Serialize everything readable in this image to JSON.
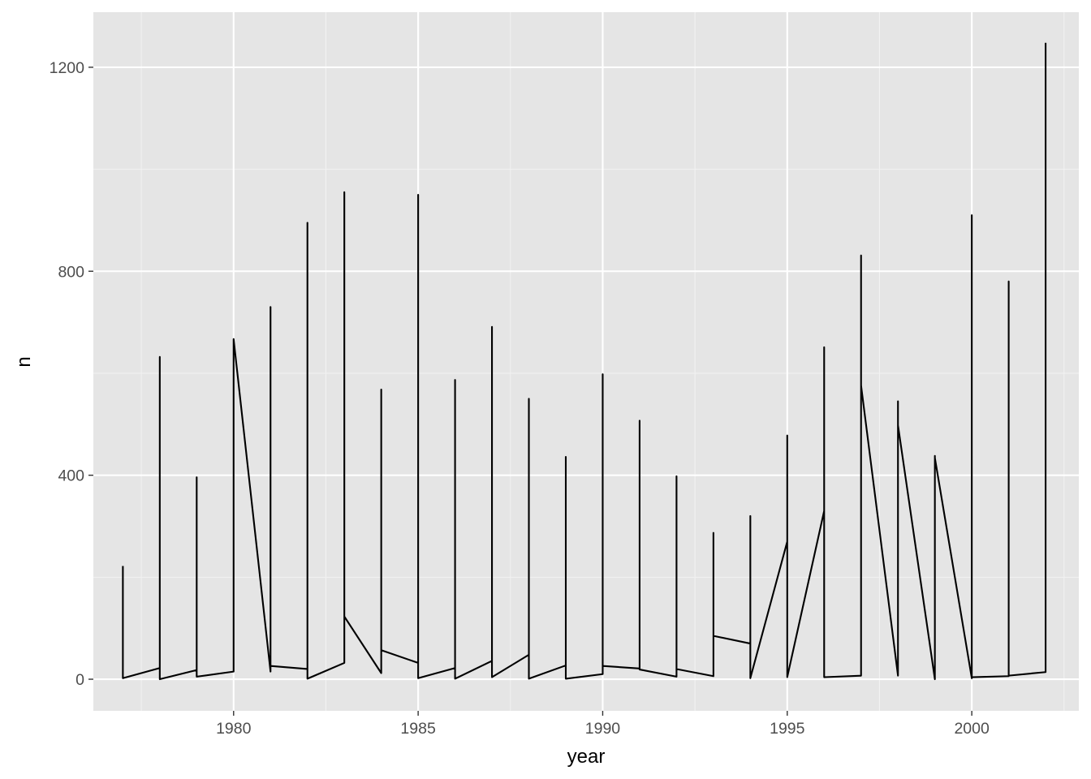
{
  "chart_data": {
    "type": "line",
    "title": "",
    "xlabel": "year",
    "ylabel": "n",
    "xlim": [
      1976.2,
      2002.9
    ],
    "ylim": [
      -62,
      1308
    ],
    "x_ticks": [
      1980,
      1985,
      1990,
      1995,
      2000
    ],
    "y_ticks": [
      0,
      400,
      800,
      1200
    ],
    "grid": true,
    "legend": "none",
    "line_color": "#000000",
    "panel_color": "#e5e5e5",
    "series": [
      {
        "x": [
          1977,
          1977,
          1978,
          1978,
          1978,
          1979,
          1979,
          1979,
          1980,
          1980,
          1981,
          1981,
          1981,
          1982,
          1982,
          1982,
          1983,
          1983,
          1983,
          1984,
          1984,
          1984,
          1985,
          1985,
          1985,
          1986,
          1986,
          1986,
          1987,
          1987,
          1987,
          1988,
          1988,
          1988,
          1989,
          1989,
          1989,
          1990,
          1990,
          1990,
          1991,
          1991,
          1991,
          1992,
          1992,
          1992,
          1993,
          1993,
          1993,
          1994,
          1994,
          1994,
          1995,
          1995,
          1995,
          1996,
          1996,
          1996,
          1997,
          1997,
          1997,
          1998,
          1998,
          1998,
          1999,
          1999,
          1999,
          2000,
          2000,
          2000,
          2001,
          2001,
          2001,
          2002,
          2002
        ],
        "y": [
          222,
          2,
          22,
          632,
          0,
          18,
          396,
          5,
          15,
          667,
          15,
          730,
          26,
          20,
          895,
          1,
          32,
          955,
          123,
          12,
          568,
          57,
          32,
          950,
          2,
          22,
          587,
          1,
          36,
          691,
          4,
          48,
          550,
          1,
          27,
          436,
          1,
          10,
          598,
          26,
          21,
          507,
          19,
          5,
          398,
          20,
          6,
          287,
          85,
          70,
          320,
          2,
          270,
          478,
          4,
          330,
          651,
          4,
          7,
          831,
          576,
          7,
          545,
          498,
          0,
          438,
          434,
          2,
          910,
          4,
          6,
          780,
          7,
          14,
          1248
        ]
      }
    ]
  }
}
